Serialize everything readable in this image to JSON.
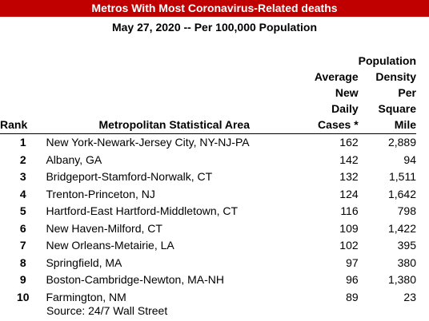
{
  "title": "Metros With Most Coronavirus-Related deaths",
  "subtitle": "May 27, 2020 -- Per 100,000 Population",
  "columns": {
    "rank": "Rank",
    "msa": "Metropolitan Statistical Area",
    "cases": [
      "Average",
      "New",
      "Daily",
      "Cases *"
    ],
    "density": [
      "Population",
      "Density",
      "Per Square",
      "Mile"
    ]
  },
  "rows": [
    {
      "rank": "1",
      "msa": "New York-Newark-Jersey City, NY-NJ-PA",
      "cases": "162",
      "density": "2,889"
    },
    {
      "rank": "2",
      "msa": "Albany, GA",
      "cases": "142",
      "density": "94"
    },
    {
      "rank": "3",
      "msa": "Bridgeport-Stamford-Norwalk, CT",
      "cases": "132",
      "density": "1,511"
    },
    {
      "rank": "4",
      "msa": "Trenton-Princeton, NJ",
      "cases": "124",
      "density": "1,642"
    },
    {
      "rank": "5",
      "msa": "Hartford-East Hartford-Middletown, CT",
      "cases": "116",
      "density": "798"
    },
    {
      "rank": "6",
      "msa": "New Haven-Milford, CT",
      "cases": "109",
      "density": "1,422"
    },
    {
      "rank": "7",
      "msa": "New Orleans-Metairie, LA",
      "cases": "102",
      "density": "395"
    },
    {
      "rank": "8",
      "msa": "Springfield, MA",
      "cases": "97",
      "density": "380"
    },
    {
      "rank": "9",
      "msa": "Boston-Cambridge-Newton, MA-NH",
      "cases": "96",
      "density": "1,380"
    },
    {
      "rank": "10",
      "msa": "Farmington, NM",
      "cases": "89",
      "density": "23"
    }
  ],
  "source": "Source: 24/7 Wall Street",
  "colors": {
    "title_background": "#c00000",
    "title_text": "#ffffff"
  }
}
